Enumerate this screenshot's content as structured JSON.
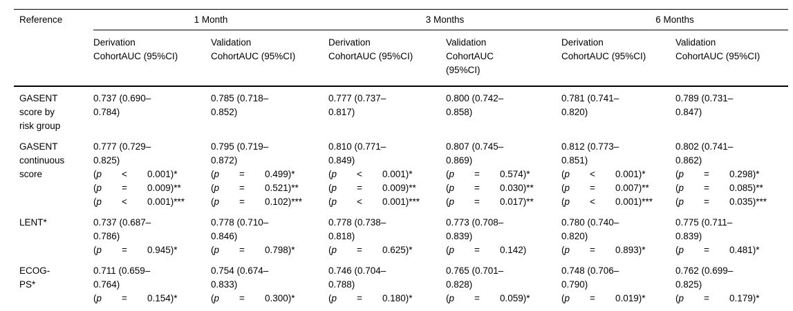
{
  "colors": {
    "background": "#ffffff",
    "text": "#000000",
    "rule": "#000000"
  },
  "table": {
    "columns": {
      "reference_label": "Reference",
      "month_groups": [
        "1 Month",
        "3 Months",
        "6 Months"
      ],
      "subheaders": [
        {
          "lines": [
            "Derivation",
            "CohortAUC (95%CI)"
          ]
        },
        {
          "lines": [
            "Validation",
            "CohortAUC (95%CI)"
          ]
        },
        {
          "lines": [
            "Derivation",
            "CohortAUC (95%CI)"
          ]
        },
        {
          "lines": [
            "Validation",
            "CohortAUC",
            "(95%CI)"
          ]
        },
        {
          "lines": [
            "Derivation",
            "CohortAUC (95%CI)"
          ]
        },
        {
          "lines": [
            "Validation",
            "CohortAUC (95%CI)"
          ]
        }
      ]
    },
    "rows": [
      {
        "reference_lines": [
          "GASENT",
          "score by",
          "risk group"
        ],
        "cells": [
          {
            "auc_lines": [
              "0.737 (0.690–",
              "0.784)"
            ],
            "p_values": []
          },
          {
            "auc_lines": [
              "0.785 (0.718–",
              "0.852)"
            ],
            "p_values": []
          },
          {
            "auc_lines": [
              "0.777 (0.737–",
              "0.817)"
            ],
            "p_values": []
          },
          {
            "auc_lines": [
              "0.800 (0.742–",
              "0.858)"
            ],
            "p_values": []
          },
          {
            "auc_lines": [
              "0.781 (0.741–",
              "0.820)"
            ],
            "p_values": []
          },
          {
            "auc_lines": [
              "0.789 (0.731–",
              "0.847)"
            ],
            "p_values": []
          }
        ]
      },
      {
        "reference_lines": [
          "GASENT",
          "continuous",
          "score"
        ],
        "cells": [
          {
            "auc_lines": [
              "0.777 (0.729–",
              "0.825)"
            ],
            "p_values": [
              {
                "rel": "<",
                "value": "0.001",
                "stars": "*"
              },
              {
                "rel": "=",
                "value": "0.009",
                "stars": "**"
              },
              {
                "rel": "<",
                "value": "0.001",
                "stars": "***"
              }
            ]
          },
          {
            "auc_lines": [
              "0.795 (0.719–",
              "0.872)"
            ],
            "p_values": [
              {
                "rel": "=",
                "value": "0.499",
                "stars": "*"
              },
              {
                "rel": "=",
                "value": "0.521",
                "stars": "**"
              },
              {
                "rel": "=",
                "value": "0.102",
                "stars": "***"
              }
            ]
          },
          {
            "auc_lines": [
              "0.810 (0.771–",
              "0.849)"
            ],
            "p_values": [
              {
                "rel": "<",
                "value": "0.001",
                "stars": "*"
              },
              {
                "rel": "=",
                "value": "0.009",
                "stars": "**"
              },
              {
                "rel": "<",
                "value": "0.001",
                "stars": "***"
              }
            ]
          },
          {
            "auc_lines": [
              "0.807 (0.745–",
              "0.869)"
            ],
            "p_values": [
              {
                "rel": "=",
                "value": "0.574",
                "stars": "*"
              },
              {
                "rel": "=",
                "value": "0.030",
                "stars": "**"
              },
              {
                "rel": "=",
                "value": "0.017",
                "stars": "**"
              }
            ]
          },
          {
            "auc_lines": [
              "0.812 (0.773–",
              "0.851)"
            ],
            "p_values": [
              {
                "rel": "<",
                "value": "0.001",
                "stars": "*"
              },
              {
                "rel": "=",
                "value": "0.007",
                "stars": "**"
              },
              {
                "rel": "<",
                "value": "0.001",
                "stars": "***"
              }
            ]
          },
          {
            "auc_lines": [
              "0.802 (0.741–",
              "0.862)"
            ],
            "p_values": [
              {
                "rel": "=",
                "value": "0.298",
                "stars": "*"
              },
              {
                "rel": "=",
                "value": "0.085",
                "stars": "**"
              },
              {
                "rel": "=",
                "value": "0.035",
                "stars": "***"
              }
            ]
          }
        ]
      },
      {
        "reference_lines": [
          "LENT*"
        ],
        "cells": [
          {
            "auc_lines": [
              "0.737 (0.687–",
              "0.786)"
            ],
            "p_values": [
              {
                "rel": "=",
                "value": "0.945",
                "stars": "*"
              }
            ]
          },
          {
            "auc_lines": [
              "0.778 (0.710–",
              "0.846)"
            ],
            "p_values": [
              {
                "rel": "=",
                "value": "0.798",
                "stars": "*"
              }
            ]
          },
          {
            "auc_lines": [
              "0.778 (0.738–",
              "0.818)"
            ],
            "p_values": [
              {
                "rel": "=",
                "value": "0.625",
                "stars": "*"
              }
            ]
          },
          {
            "auc_lines": [
              "0.773 (0.708–",
              "0.839)"
            ],
            "p_values": [
              {
                "rel": "=",
                "value": "0.142",
                "stars": ""
              }
            ]
          },
          {
            "auc_lines": [
              "0.780 (0.740–",
              "0.820)"
            ],
            "p_values": [
              {
                "rel": "=",
                "value": "0.893",
                "stars": "*"
              }
            ]
          },
          {
            "auc_lines": [
              "0.775 (0.711–",
              "0.839)"
            ],
            "p_values": [
              {
                "rel": "=",
                "value": "0.481",
                "stars": "*"
              }
            ]
          }
        ]
      },
      {
        "reference_lines": [
          "ECOG-",
          "PS*"
        ],
        "cells": [
          {
            "auc_lines": [
              "0.711 (0.659–",
              "0.764)"
            ],
            "p_values": [
              {
                "rel": "=",
                "value": "0.154",
                "stars": "*"
              }
            ]
          },
          {
            "auc_lines": [
              "0.754 (0.674–",
              "0.833)"
            ],
            "p_values": [
              {
                "rel": "=",
                "value": "0.300",
                "stars": "*"
              }
            ]
          },
          {
            "auc_lines": [
              "0.746 (0.704–",
              "0.788)"
            ],
            "p_values": [
              {
                "rel": "=",
                "value": "0.180",
                "stars": "*"
              }
            ]
          },
          {
            "auc_lines": [
              "0.765 (0.701–",
              "0.828)"
            ],
            "p_values": [
              {
                "rel": "=",
                "value": "0.059",
                "stars": "*"
              }
            ]
          },
          {
            "auc_lines": [
              "0.748 (0.706–",
              "0.790)"
            ],
            "p_values": [
              {
                "rel": "=",
                "value": "0.019",
                "stars": "*"
              }
            ]
          },
          {
            "auc_lines": [
              "0.762 (0.699–",
              "0.825)"
            ],
            "p_values": [
              {
                "rel": "=",
                "value": "0.179",
                "stars": "*"
              }
            ]
          }
        ]
      }
    ]
  }
}
